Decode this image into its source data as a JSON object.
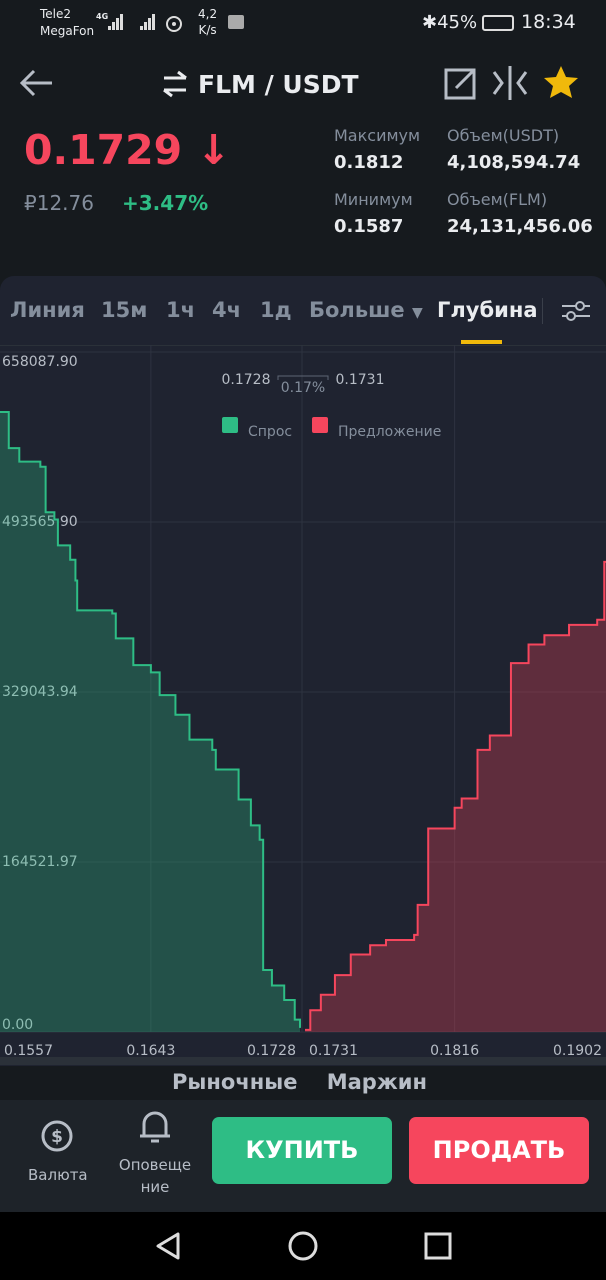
{
  "status_bar": {
    "carrier1": "Tele2",
    "carrier2": "MegaFon",
    "network": "4G",
    "speed": "4,2",
    "speed_unit": "K/s",
    "battery": "45%",
    "time": "18:34"
  },
  "header": {
    "pair": "FLM / USDT"
  },
  "ticker": {
    "price": "0.1729",
    "price_rub": "₽12.76",
    "change": "+3.47%",
    "stats": [
      {
        "label": "Максимум",
        "value": "0.1812"
      },
      {
        "label": "Объем(USDT)",
        "value": "4,108,594.74"
      },
      {
        "label": "Минимум",
        "value": "0.1587"
      },
      {
        "label": "Объем(FLM)",
        "value": "24,131,456.06"
      }
    ]
  },
  "tabs": [
    "Линия",
    "15м",
    "1ч",
    "4ч",
    "1д",
    "Больше",
    "Глубина"
  ],
  "chart_data": {
    "type": "depth",
    "spread_low": "0.1728",
    "spread_pct": "0.17%",
    "spread_high": "0.1731",
    "ylim": [
      0,
      658087.9
    ],
    "yticks": [
      {
        "value": 0,
        "label": "0.00"
      },
      {
        "value": 164521.97,
        "label": "164521.97"
      },
      {
        "value": 329043.94,
        "label": "329043.94"
      },
      {
        "value": 493565.9,
        "label": "493565.90"
      },
      {
        "value": 658087.9,
        "label": "658087.90"
      }
    ],
    "series": [
      {
        "name": "Спрос",
        "color": "#2ebd85",
        "xlim": [
          0.1557,
          0.1728
        ],
        "xticks": [
          0.1557,
          0.1643,
          0.1728
        ],
        "x": [
          0.1557,
          0.1562,
          0.1568,
          0.158,
          0.1583,
          0.1588,
          0.159,
          0.1597,
          0.16,
          0.1601,
          0.1621,
          0.1623,
          0.1633,
          0.1643,
          0.1648,
          0.1657,
          0.1665,
          0.1678,
          0.168,
          0.1693,
          0.17,
          0.1705,
          0.1707,
          0.1712,
          0.1719,
          0.1725,
          0.1728
        ],
        "values": [
          600000,
          565000,
          552000,
          547000,
          503000,
          496000,
          471000,
          457000,
          437000,
          408000,
          405000,
          381000,
          355000,
          348000,
          326000,
          307000,
          283000,
          273000,
          254000,
          225000,
          200000,
          186000,
          60000,
          45000,
          31000,
          12000,
          4000
        ]
      },
      {
        "name": "Предложение",
        "color": "#f6465d",
        "xlim": [
          0.1731,
          0.1902
        ],
        "xticks": [
          0.1731,
          0.1816,
          0.1902
        ],
        "x": [
          0.1731,
          0.1734,
          0.174,
          0.1748,
          0.1757,
          0.1768,
          0.1777,
          0.1793,
          0.1795,
          0.1801,
          0.1816,
          0.182,
          0.1829,
          0.1836,
          0.1848,
          0.1858,
          0.1867,
          0.1881,
          0.1897,
          0.1901,
          0.1902
        ],
        "values": [
          2000,
          21000,
          36000,
          55000,
          75000,
          84000,
          89000,
          94000,
          123000,
          197000,
          217000,
          226000,
          273000,
          287000,
          357000,
          375000,
          384000,
          394000,
          399000,
          455000,
          455000
        ]
      }
    ]
  },
  "order_tabs": [
    "Рыночные",
    "Маржин"
  ],
  "bottom_bar": {
    "currency": "Валюта",
    "alerts": "Оповещение",
    "buy": "КУПИТЬ",
    "sell": "ПРОДАТЬ"
  }
}
